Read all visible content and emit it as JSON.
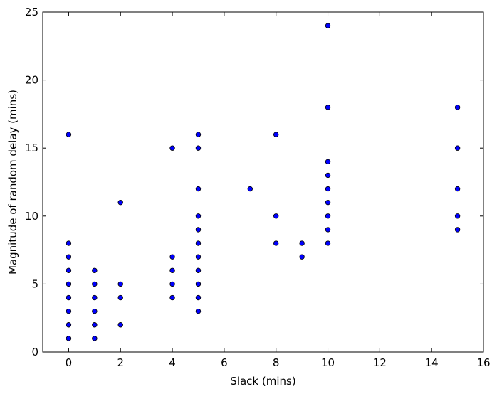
{
  "chart_data": {
    "type": "scatter",
    "title": "",
    "xlabel": "Slack (mins)",
    "ylabel": "Magnitude of random delay (mins)",
    "xlim": [
      -1,
      16
    ],
    "ylim": [
      0,
      25
    ],
    "xticks": [
      0,
      2,
      4,
      6,
      8,
      10,
      12,
      14,
      16
    ],
    "yticks": [
      0,
      5,
      10,
      15,
      20,
      25
    ],
    "grid": false,
    "marker_color": "#0000ff",
    "marker_edge_color": "#000000",
    "points": [
      [
        0,
        16
      ],
      [
        0,
        8
      ],
      [
        0,
        7
      ],
      [
        0,
        6
      ],
      [
        0,
        5
      ],
      [
        0,
        4
      ],
      [
        0,
        3
      ],
      [
        0,
        2
      ],
      [
        0,
        1
      ],
      [
        1,
        6
      ],
      [
        1,
        5
      ],
      [
        1,
        4
      ],
      [
        1,
        3
      ],
      [
        1,
        2
      ],
      [
        1,
        1
      ],
      [
        2,
        11
      ],
      [
        2,
        5
      ],
      [
        2,
        4
      ],
      [
        2,
        2
      ],
      [
        4,
        15
      ],
      [
        4,
        7
      ],
      [
        4,
        6
      ],
      [
        4,
        5
      ],
      [
        4,
        4
      ],
      [
        5,
        16
      ],
      [
        5,
        15
      ],
      [
        5,
        12
      ],
      [
        5,
        10
      ],
      [
        5,
        9
      ],
      [
        5,
        8
      ],
      [
        5,
        7
      ],
      [
        5,
        6
      ],
      [
        5,
        5
      ],
      [
        5,
        4
      ],
      [
        5,
        3
      ],
      [
        7,
        12
      ],
      [
        8,
        16
      ],
      [
        8,
        10
      ],
      [
        8,
        8
      ],
      [
        9,
        8
      ],
      [
        9,
        7
      ],
      [
        10,
        24
      ],
      [
        10,
        18
      ],
      [
        10,
        14
      ],
      [
        10,
        13
      ],
      [
        10,
        12
      ],
      [
        10,
        11
      ],
      [
        10,
        10
      ],
      [
        10,
        9
      ],
      [
        10,
        8
      ],
      [
        15,
        18
      ],
      [
        15,
        15
      ],
      [
        15,
        12
      ],
      [
        15,
        10
      ],
      [
        15,
        9
      ]
    ]
  }
}
